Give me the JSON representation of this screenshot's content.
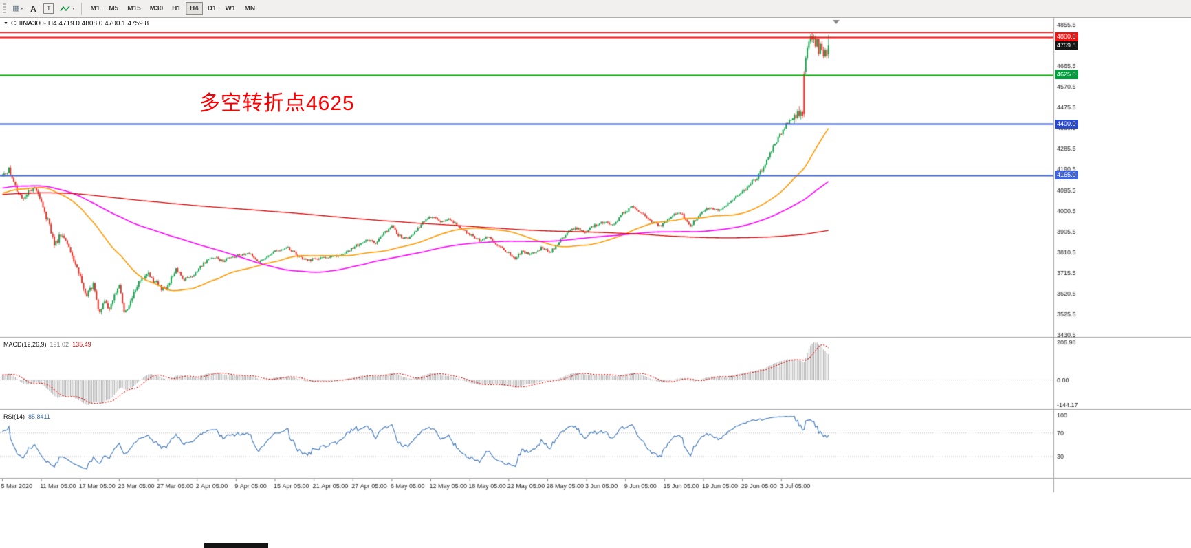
{
  "toolbar": {
    "icons": {
      "chart_grid": "▦",
      "text_tool": "A",
      "shape_tool": "T",
      "caret": "▾"
    },
    "timeframes": [
      {
        "label": "M1",
        "active": false
      },
      {
        "label": "M5",
        "active": false
      },
      {
        "label": "M15",
        "active": false
      },
      {
        "label": "M30",
        "active": false
      },
      {
        "label": "H1",
        "active": false
      },
      {
        "label": "H4",
        "active": true
      },
      {
        "label": "D1",
        "active": false
      },
      {
        "label": "W1",
        "active": false
      },
      {
        "label": "MN",
        "active": false
      }
    ]
  },
  "chart": {
    "title": "CHINA300-,H4  4719.0 4808.0 4700.1 4759.8",
    "title_triangle": "▼",
    "annotation": "多空转折点4625",
    "annotation_color": "#ff0000"
  },
  "chart_data": {
    "type": "candlestick",
    "symbol": "CHINA300-",
    "period": "H4",
    "current_ohlc": {
      "open": 4719.0,
      "high": 4808.0,
      "low": 4700.1,
      "close": 4759.8
    },
    "up_color": "#12a14b",
    "down_color": "#e53228",
    "candle_count": 510,
    "tail_start": 488,
    "price_keyframes": [
      [
        0,
        4160
      ],
      [
        4,
        4195
      ],
      [
        8,
        4120
      ],
      [
        12,
        4045
      ],
      [
        16,
        4090
      ],
      [
        20,
        4110
      ],
      [
        24,
        4030
      ],
      [
        28,
        3955
      ],
      [
        32,
        3845
      ],
      [
        36,
        3890
      ],
      [
        40,
        3860
      ],
      [
        44,
        3770
      ],
      [
        48,
        3700
      ],
      [
        52,
        3610
      ],
      [
        56,
        3660
      ],
      [
        60,
        3525
      ],
      [
        63,
        3585
      ],
      [
        66,
        3545
      ],
      [
        69,
        3610
      ],
      [
        72,
        3650
      ],
      [
        75,
        3535
      ],
      [
        78,
        3560
      ],
      [
        82,
        3645
      ],
      [
        86,
        3690
      ],
      [
        90,
        3710
      ],
      [
        95,
        3665
      ],
      [
        100,
        3635
      ],
      [
        104,
        3690
      ],
      [
        107,
        3725
      ],
      [
        112,
        3685
      ],
      [
        118,
        3705
      ],
      [
        124,
        3760
      ],
      [
        130,
        3788
      ],
      [
        136,
        3772
      ],
      [
        142,
        3790
      ],
      [
        148,
        3800
      ],
      [
        152,
        3808
      ],
      [
        158,
        3762
      ],
      [
        164,
        3798
      ],
      [
        170,
        3820
      ],
      [
        176,
        3828
      ],
      [
        182,
        3795
      ],
      [
        188,
        3772
      ],
      [
        194,
        3782
      ],
      [
        200,
        3790
      ],
      [
        206,
        3795
      ],
      [
        212,
        3812
      ],
      [
        218,
        3840
      ],
      [
        224,
        3865
      ],
      [
        230,
        3855
      ],
      [
        236,
        3905
      ],
      [
        240,
        3928
      ],
      [
        244,
        3888
      ],
      [
        250,
        3868
      ],
      [
        256,
        3920
      ],
      [
        262,
        3970
      ],
      [
        266,
        3975
      ],
      [
        270,
        3945
      ],
      [
        276,
        3962
      ],
      [
        282,
        3920
      ],
      [
        288,
        3892
      ],
      [
        294,
        3865
      ],
      [
        300,
        3880
      ],
      [
        306,
        3838
      ],
      [
        312,
        3805
      ],
      [
        316,
        3786
      ],
      [
        320,
        3812
      ],
      [
        326,
        3800
      ],
      [
        332,
        3828
      ],
      [
        338,
        3812
      ],
      [
        344,
        3868
      ],
      [
        350,
        3915
      ],
      [
        354,
        3922
      ],
      [
        358,
        3900
      ],
      [
        364,
        3928
      ],
      [
        370,
        3950
      ],
      [
        376,
        3932
      ],
      [
        382,
        3988
      ],
      [
        388,
        4018
      ],
      [
        394,
        3992
      ],
      [
        400,
        3952
      ],
      [
        406,
        3930
      ],
      [
        412,
        3978
      ],
      [
        418,
        3990
      ],
      [
        424,
        3932
      ],
      [
        430,
        3988
      ],
      [
        436,
        4018
      ],
      [
        442,
        4002
      ],
      [
        448,
        4038
      ],
      [
        454,
        4078
      ],
      [
        460,
        4118
      ],
      [
        466,
        4162
      ],
      [
        472,
        4248
      ],
      [
        478,
        4338
      ],
      [
        483,
        4398
      ],
      [
        487,
        4425
      ]
    ],
    "tail_candles": [
      [
        4420,
        4448,
        4402,
        4442
      ],
      [
        4442,
        4455,
        4412,
        4428
      ],
      [
        4428,
        4468,
        4422,
        4458
      ],
      [
        4458,
        4482,
        4430,
        4438
      ],
      [
        4438,
        4465,
        4420,
        4455
      ],
      [
        4455,
        4462,
        4425,
        4436
      ],
      [
        4630,
        4643,
        4432,
        4445
      ],
      [
        4640,
        4712,
        4628,
        4702
      ],
      [
        4702,
        4758,
        4694,
        4748
      ],
      [
        4748,
        4790,
        4738,
        4778
      ],
      [
        4778,
        4812,
        4768,
        4802
      ],
      [
        4802,
        4820,
        4775,
        4788
      ],
      [
        4788,
        4810,
        4770,
        4800
      ],
      [
        4800,
        4806,
        4748,
        4756
      ],
      [
        4756,
        4796,
        4750,
        4790
      ],
      [
        4790,
        4794,
        4712,
        4722
      ],
      [
        4722,
        4776,
        4718,
        4768
      ],
      [
        4768,
        4780,
        4735,
        4742
      ],
      [
        4742,
        4754,
        4700,
        4710
      ],
      [
        4710,
        4748,
        4704,
        4740
      ],
      [
        4740,
        4746,
        4698,
        4712
      ],
      [
        4719,
        4808,
        4700.1,
        4759.8
      ]
    ],
    "prehistory_keyframes": [
      [
        0,
        3920
      ],
      [
        80,
        4000
      ],
      [
        160,
        4060
      ],
      [
        240,
        4150
      ],
      [
        300,
        4180
      ],
      [
        360,
        3940
      ],
      [
        420,
        4220
      ],
      [
        470,
        4020
      ],
      [
        500,
        4100
      ],
      [
        519,
        4158
      ]
    ],
    "moving_averages": [
      {
        "period": 60,
        "color": "#ff9900",
        "width": 1.6
      },
      {
        "period": 150,
        "color": "#ff00ff",
        "width": 1.6
      },
      {
        "period": 500,
        "color": "#e00000",
        "width": 1.3
      }
    ],
    "hlines": [
      {
        "price": 4822,
        "color": "#ff0f0f",
        "width": 1.4,
        "label": null
      },
      {
        "price": 4800,
        "color": "#ff0f0f",
        "width": 2,
        "label": "4800.0"
      },
      {
        "price": 4625,
        "color": "#00aa00",
        "width": 2,
        "label": "4625.0"
      },
      {
        "price": 4400,
        "color": "#2f4fd8",
        "width": 2,
        "label": "4400.0"
      },
      {
        "price": 4165,
        "color": "#4166e0",
        "width": 2,
        "label": "4165.0"
      }
    ],
    "badges": [
      {
        "name": "price-badge-4800",
        "label": "4800.0",
        "price": 4800,
        "bg": "#ea1515"
      },
      {
        "name": "current-price-badge",
        "label": "4759.8",
        "price": 4759.8,
        "bg": "#161616"
      },
      {
        "name": "price-badge-4625",
        "label": "4625.0",
        "price": 4625,
        "bg": "#00a13c"
      },
      {
        "name": "price-badge-4400",
        "label": "4400.0",
        "price": 4400,
        "bg": "#2b49cc"
      },
      {
        "name": "price-badge-4165",
        "label": "4165.0",
        "price": 4165,
        "bg": "#3f63dd"
      }
    ],
    "price_ticks": [
      4855.5,
      4665.5,
      4570.5,
      4475.5,
      4380.5,
      4285.5,
      4190.5,
      4095.5,
      4000.5,
      3905.5,
      3810.5,
      3715.5,
      3620.5,
      3525.5,
      3430.5
    ],
    "ylim": [
      3430.5,
      4855.5
    ],
    "indicators": {
      "macd": {
        "name": "MACD(12,26,9)",
        "v1": "191.02",
        "v2": "135.49",
        "axis": [
          "206.98",
          "0.00",
          "-144.17"
        ],
        "histogram_color": "#a6a6a6",
        "signal_color": "#d40000"
      },
      "rsi": {
        "name": "RSI(14)",
        "v1": "85.8411",
        "axis": [
          "100",
          "70",
          "30"
        ],
        "levels": [
          70,
          30
        ],
        "line_color": "#4a7ebc"
      }
    },
    "time_labels": [
      "5 Mar 2020",
      "11 Mar 05:00",
      "17 Mar 05:00",
      "23 Mar 05:00",
      "27 Mar 05:00",
      "2 Apr 05:00",
      "9 Apr 05:00",
      "15 Apr 05:00",
      "21 Apr 05:00",
      "27 Apr 05:00",
      "6 May 05:00",
      "12 May 05:00",
      "18 May 05:00",
      "22 May 05:00",
      "28 May 05:00",
      "3 Jun 05:00",
      "9 Jun 05:00",
      "15 Jun 05:00",
      "19 Jun 05:00",
      "29 Jun 05:00",
      "3 Jul 05:00"
    ]
  }
}
